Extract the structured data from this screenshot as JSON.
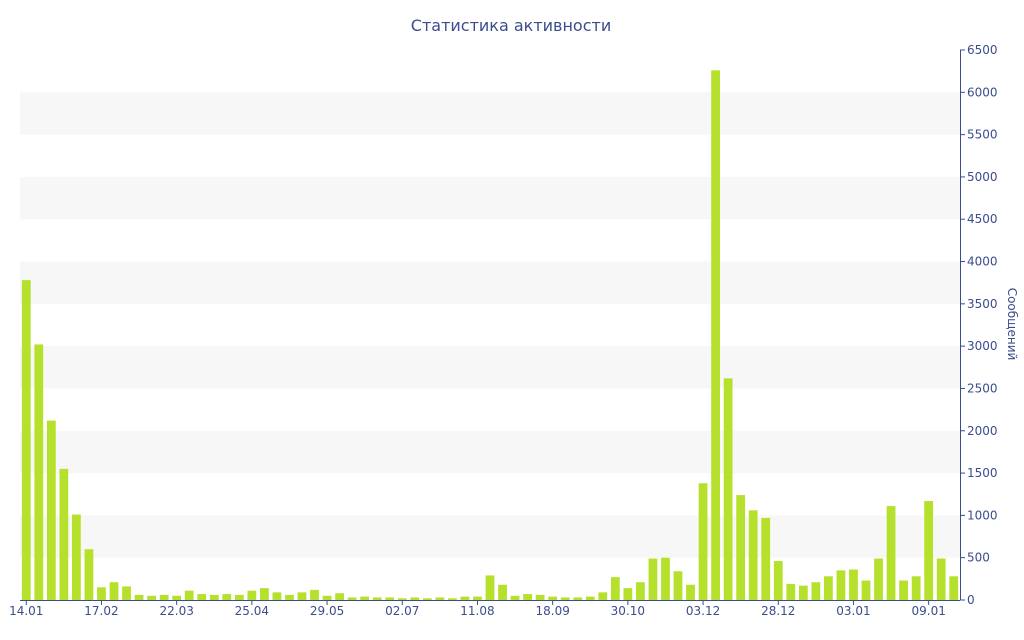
{
  "chart_data": {
    "type": "bar",
    "title": "Статистика активности",
    "xlabel": "",
    "ylabel": "Сообщений",
    "y_axis_side": "right",
    "ylim": [
      0,
      6500
    ],
    "y_ticks": [
      0,
      500,
      1000,
      1500,
      2000,
      2500,
      3000,
      3500,
      4000,
      4500,
      5000,
      5500,
      6000,
      6500
    ],
    "grid": "alternating horizontal bands",
    "x_tick_labels": [
      {
        "index": 0,
        "label": "14.01"
      },
      {
        "index": 6,
        "label": "17.02"
      },
      {
        "index": 12,
        "label": "22.03"
      },
      {
        "index": 18,
        "label": "25.04"
      },
      {
        "index": 24,
        "label": "29.05"
      },
      {
        "index": 30,
        "label": "02.07"
      },
      {
        "index": 36,
        "label": "11.08"
      },
      {
        "index": 42,
        "label": "18.09"
      },
      {
        "index": 48,
        "label": "30.10"
      },
      {
        "index": 54,
        "label": "03.12"
      },
      {
        "index": 60,
        "label": "28.12"
      },
      {
        "index": 66,
        "label": "03.01"
      },
      {
        "index": 72,
        "label": "09.01"
      }
    ],
    "bar_color": "#b5e02c",
    "values": [
      3780,
      3020,
      2120,
      1550,
      1010,
      600,
      150,
      210,
      160,
      60,
      50,
      60,
      50,
      110,
      70,
      60,
      70,
      60,
      110,
      140,
      90,
      60,
      90,
      120,
      50,
      80,
      30,
      40,
      30,
      30,
      20,
      30,
      20,
      30,
      20,
      40,
      40,
      290,
      180,
      50,
      70,
      60,
      40,
      30,
      30,
      40,
      90,
      270,
      140,
      210,
      490,
      500,
      340,
      180,
      1380,
      6260,
      2620,
      1240,
      1060,
      970,
      460,
      190,
      170,
      210,
      280,
      350,
      360,
      230,
      490,
      1110,
      230,
      280,
      1170,
      490,
      280
    ]
  }
}
